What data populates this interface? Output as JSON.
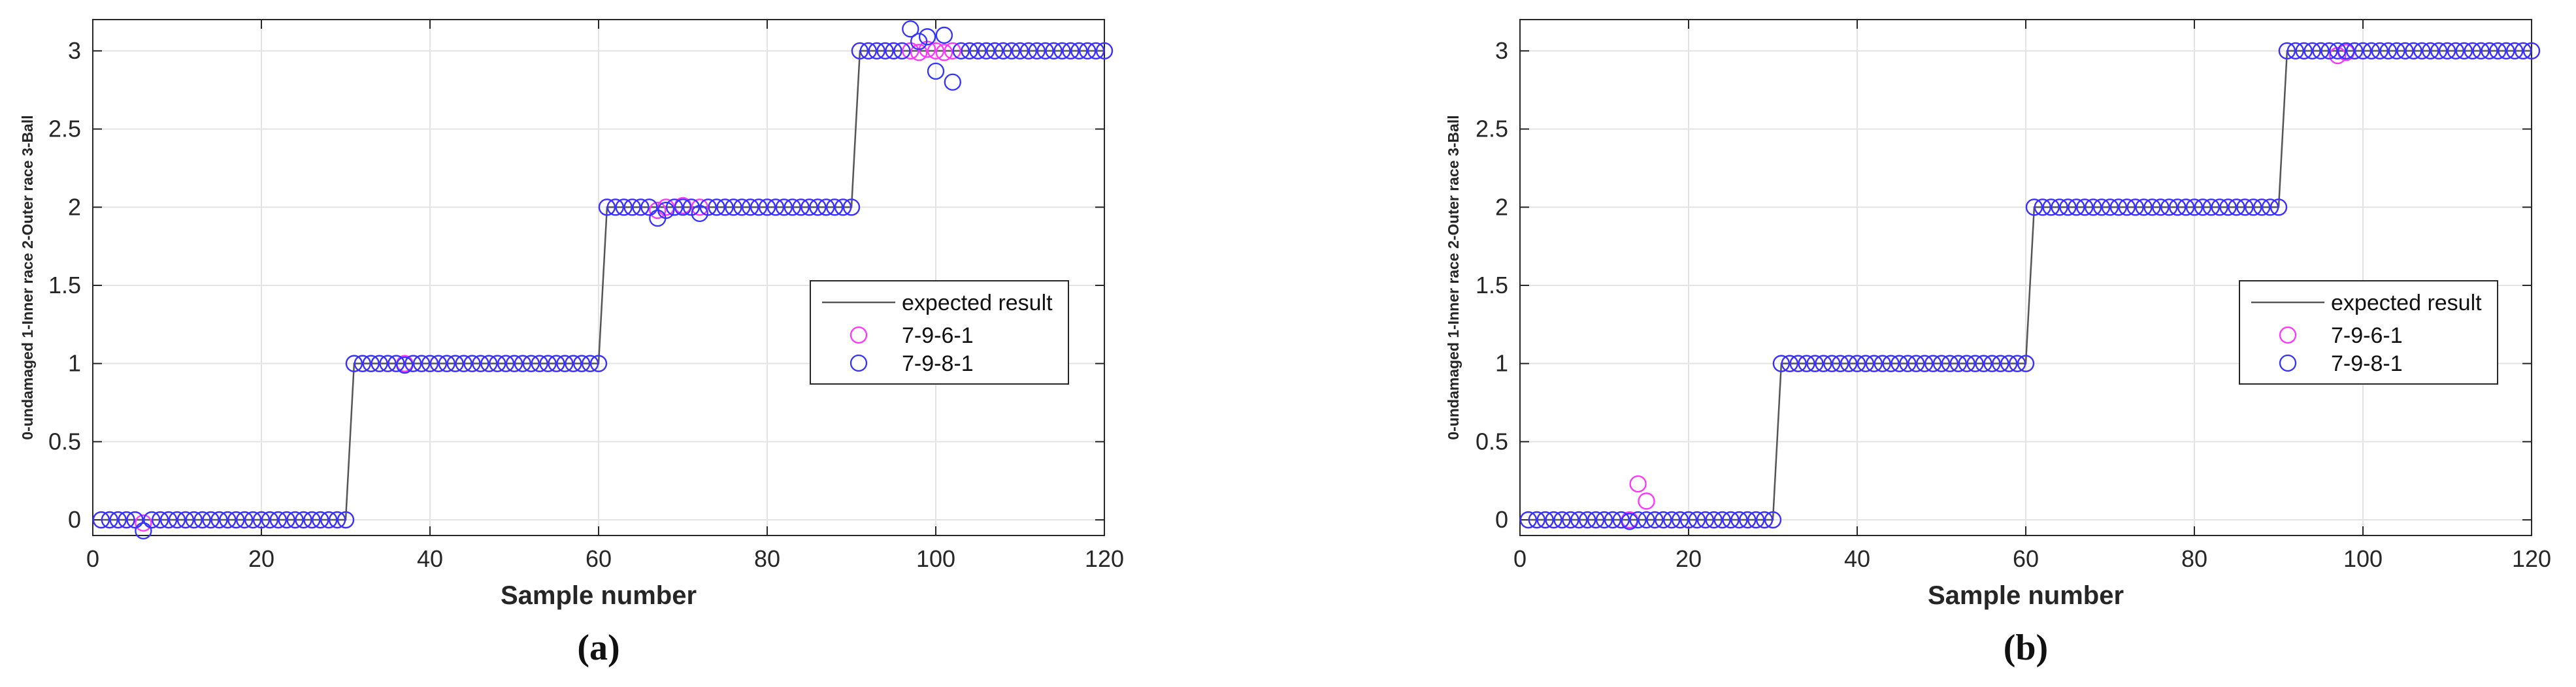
{
  "chart_data": [
    {
      "panel_label": "(a)",
      "type": "scatter",
      "xlabel": "Sample number",
      "ylabel": "0-undamaged 1-Inner race 2-Outer race 3-Ball",
      "xlim": [
        0,
        120
      ],
      "ylim": [
        -0.1,
        3.2
      ],
      "xticks": [
        "0",
        "20",
        "40",
        "60",
        "80",
        "100",
        "120"
      ],
      "yticks": [
        "0",
        "0.5",
        "1",
        "1.5",
        "2",
        "2.5",
        "3"
      ],
      "grid": true,
      "legend_position": "center-right",
      "series": [
        {
          "name": "expected result",
          "style": "line",
          "color": "#555555",
          "segments": [
            {
              "from": 1,
              "to": 30,
              "y": 0
            },
            {
              "from": 31,
              "to": 60,
              "y": 1
            },
            {
              "from": 61,
              "to": 90,
              "y": 2
            },
            {
              "from": 91,
              "to": 120,
              "y": 3
            }
          ]
        },
        {
          "name": "7-9-6-1",
          "style": "circle",
          "color": "#ff33ff",
          "deviations": {
            "6": -0.02,
            "67": 1.98,
            "68": 2.0,
            "70": 2.01,
            "97": 3.0,
            "98": 2.99,
            "99": 3.01,
            "100": 3.0,
            "101": 2.99
          }
        },
        {
          "name": "7-9-8-1",
          "style": "circle",
          "color": "#3333ff",
          "deviations": {
            "6": -0.07,
            "37": 0.99,
            "67": 1.93,
            "68": 1.98,
            "72": 1.96,
            "97": 3.14,
            "98": 3.06,
            "99": 3.09,
            "100": 2.87,
            "101": 3.1,
            "102": 2.8
          }
        }
      ]
    },
    {
      "panel_label": "(b)",
      "type": "scatter",
      "xlabel": "Sample number",
      "ylabel": "0-undamaged 1-Inner race 2-Outer race 3-Ball",
      "xlim": [
        0,
        120
      ],
      "ylim": [
        -0.1,
        3.2
      ],
      "xticks": [
        "0",
        "20",
        "40",
        "60",
        "80",
        "100",
        "120"
      ],
      "yticks": [
        "0",
        "0.5",
        "1",
        "1.5",
        "2",
        "2.5",
        "3"
      ],
      "grid": true,
      "legend_position": "center-right",
      "series": [
        {
          "name": "expected result",
          "style": "line",
          "color": "#555555",
          "segments": [
            {
              "from": 1,
              "to": 30,
              "y": 0
            },
            {
              "from": 31,
              "to": 60,
              "y": 1
            },
            {
              "from": 61,
              "to": 90,
              "y": 2
            },
            {
              "from": 91,
              "to": 120,
              "y": 3
            }
          ]
        },
        {
          "name": "7-9-6-1",
          "style": "circle",
          "color": "#ff33ff",
          "deviations": {
            "14": 0.23,
            "15": 0.12,
            "97": 2.97,
            "98": 2.99
          }
        },
        {
          "name": "7-9-8-1",
          "style": "circle",
          "color": "#3333ff",
          "deviations": {
            "13": -0.01
          }
        }
      ]
    }
  ]
}
